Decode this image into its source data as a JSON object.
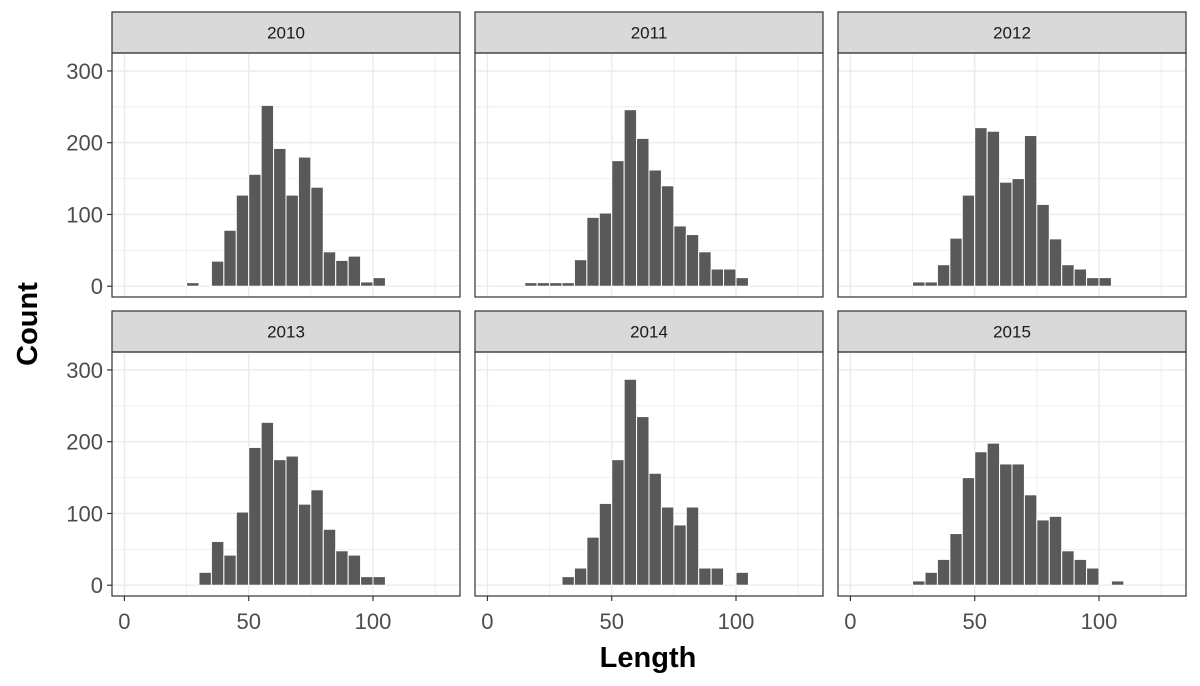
{
  "chart_data": {
    "type": "bar",
    "chart_kind": "faceted histogram",
    "xlabel": "Length",
    "ylabel": "Count",
    "xlim": [
      -5,
      135
    ],
    "ylim": [
      -15,
      325
    ],
    "x_ticks": [
      0,
      50,
      100
    ],
    "y_ticks": [
      0,
      100,
      200,
      300
    ],
    "bin_width": 5,
    "bar_color": "#595959",
    "panel_border_color": "#333333",
    "strip_fill": "#d9d9d9",
    "grid_color": "#ebebeb",
    "grid": true,
    "facets": [
      {
        "label": "2010",
        "bins": [
          [
            27.5,
            5
          ],
          [
            37.5,
            35
          ],
          [
            42.5,
            78
          ],
          [
            47.5,
            127
          ],
          [
            52.5,
            156
          ],
          [
            57.5,
            252
          ],
          [
            62.5,
            192
          ],
          [
            67.5,
            127
          ],
          [
            72.5,
            180
          ],
          [
            77.5,
            138
          ],
          [
            82.5,
            48
          ],
          [
            87.5,
            36
          ],
          [
            92.5,
            42
          ],
          [
            97.5,
            6
          ],
          [
            102.5,
            12
          ]
        ]
      },
      {
        "label": "2011",
        "bins": [
          [
            17.5,
            5
          ],
          [
            22.5,
            5
          ],
          [
            27.5,
            5
          ],
          [
            32.5,
            5
          ],
          [
            37.5,
            37
          ],
          [
            42.5,
            96
          ],
          [
            47.5,
            102
          ],
          [
            52.5,
            175
          ],
          [
            57.5,
            246
          ],
          [
            62.5,
            206
          ],
          [
            67.5,
            162
          ],
          [
            72.5,
            140
          ],
          [
            77.5,
            84
          ],
          [
            82.5,
            72
          ],
          [
            87.5,
            48
          ],
          [
            92.5,
            24
          ],
          [
            97.5,
            24
          ],
          [
            102.5,
            12
          ]
        ]
      },
      {
        "label": "2012",
        "bins": [
          [
            27.5,
            6
          ],
          [
            32.5,
            6
          ],
          [
            37.5,
            30
          ],
          [
            42.5,
            67
          ],
          [
            47.5,
            127
          ],
          [
            52.5,
            221
          ],
          [
            57.5,
            216
          ],
          [
            62.5,
            145
          ],
          [
            67.5,
            150
          ],
          [
            72.5,
            210
          ],
          [
            77.5,
            114
          ],
          [
            82.5,
            66
          ],
          [
            87.5,
            30
          ],
          [
            92.5,
            24
          ],
          [
            97.5,
            12
          ],
          [
            102.5,
            12
          ]
        ]
      },
      {
        "label": "2013",
        "bins": [
          [
            32.5,
            18
          ],
          [
            37.5,
            61
          ],
          [
            42.5,
            42
          ],
          [
            47.5,
            102
          ],
          [
            52.5,
            192
          ],
          [
            57.5,
            227
          ],
          [
            62.5,
            175
          ],
          [
            67.5,
            180
          ],
          [
            72.5,
            113
          ],
          [
            77.5,
            133
          ],
          [
            82.5,
            78
          ],
          [
            87.5,
            48
          ],
          [
            92.5,
            42
          ],
          [
            97.5,
            12
          ],
          [
            102.5,
            12
          ]
        ]
      },
      {
        "label": "2014",
        "bins": [
          [
            32.5,
            12
          ],
          [
            37.5,
            24
          ],
          [
            42.5,
            67
          ],
          [
            47.5,
            114
          ],
          [
            52.5,
            175
          ],
          [
            57.5,
            287
          ],
          [
            62.5,
            235
          ],
          [
            67.5,
            156
          ],
          [
            72.5,
            109
          ],
          [
            77.5,
            84
          ],
          [
            82.5,
            109
          ],
          [
            87.5,
            24
          ],
          [
            92.5,
            24
          ],
          [
            102.5,
            18
          ]
        ]
      },
      {
        "label": "2015",
        "bins": [
          [
            27.5,
            6
          ],
          [
            32.5,
            18
          ],
          [
            37.5,
            36
          ],
          [
            42.5,
            72
          ],
          [
            47.5,
            150
          ],
          [
            52.5,
            186
          ],
          [
            57.5,
            198
          ],
          [
            62.5,
            169
          ],
          [
            67.5,
            169
          ],
          [
            72.5,
            126
          ],
          [
            77.5,
            91
          ],
          [
            82.5,
            96
          ],
          [
            87.5,
            48
          ],
          [
            92.5,
            36
          ],
          [
            97.5,
            24
          ],
          [
            107.5,
            6
          ]
        ]
      }
    ]
  }
}
